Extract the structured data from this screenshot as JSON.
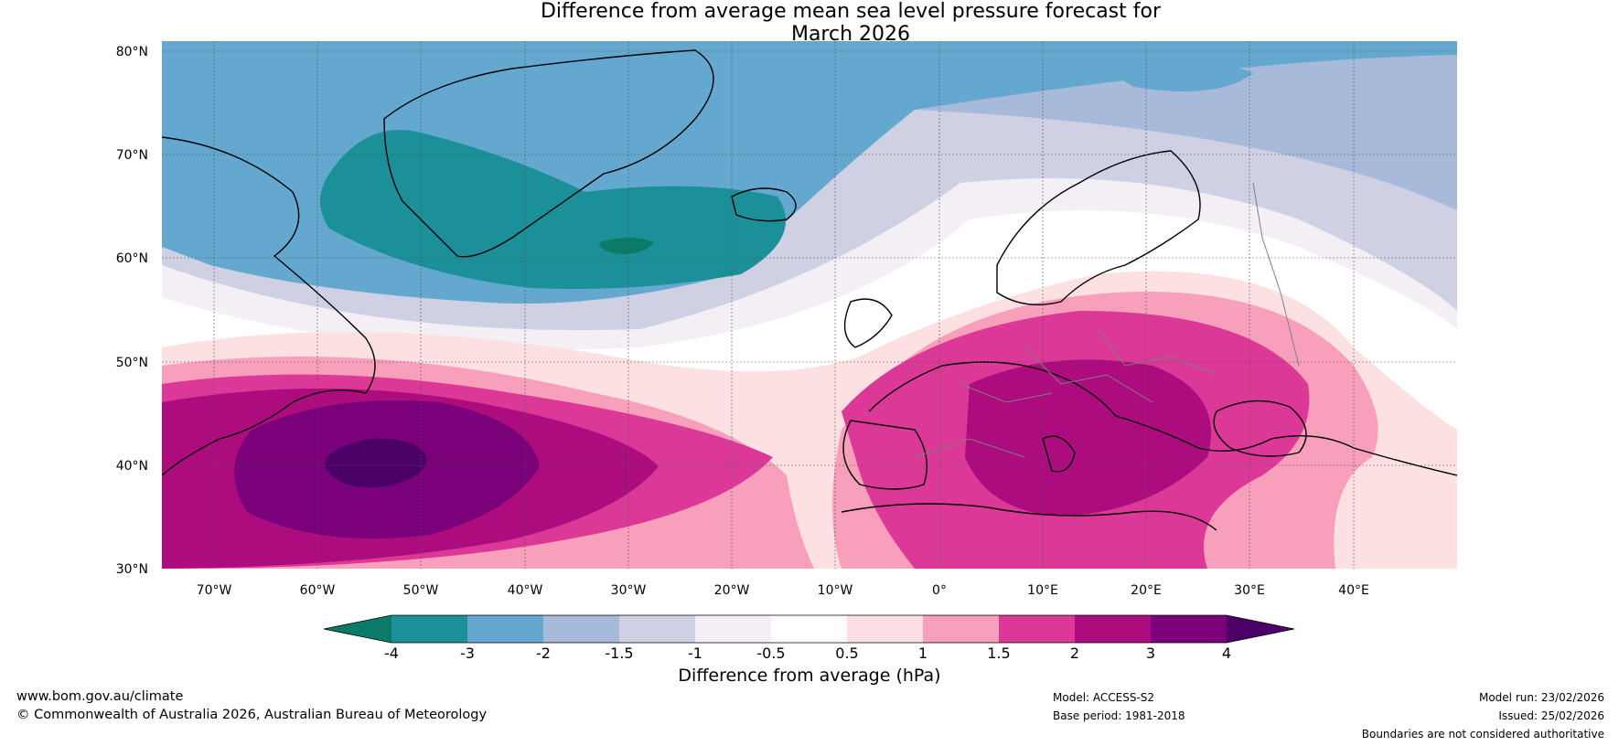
{
  "title": {
    "line1": "Difference from average mean sea level pressure forecast for",
    "line2": "March 2026"
  },
  "map": {
    "lat_labels": [
      "80°N",
      "70°N",
      "60°N",
      "50°N",
      "40°N",
      "30°N"
    ],
    "lon_labels": [
      "70°W",
      "60°W",
      "50°W",
      "40°W",
      "30°W",
      "20°W",
      "10°W",
      "0°",
      "10°E",
      "20°E",
      "30°E",
      "40°E"
    ]
  },
  "colorbar": {
    "title": "Difference from average (hPa)",
    "tick_labels": [
      "-4",
      "-3",
      "-2",
      "-1.5",
      "-1",
      "-0.5",
      "0.5",
      "1",
      "1.5",
      "2",
      "3",
      "4"
    ],
    "colors": [
      "#0c7a68",
      "#1b9099",
      "#64a8cf",
      "#a7bada",
      "#d0d0e5",
      "#f3eff5",
      "#ffffff",
      "#fde0e2",
      "#f79fbb",
      "#dc3897",
      "#ad0c7e",
      "#7a0179",
      "#4b0068"
    ]
  },
  "footer": {
    "website": "www.bom.gov.au/climate",
    "copyright": "© Commonwealth of Australia 2026, Australian Bureau of Meteorology",
    "model": "Model: ACCESS-S2",
    "base_period": "Base period: 1981-2018",
    "model_run": "Model run: 23/02/2026",
    "issued": "Issued: 25/02/2026",
    "disclaimer": "Boundaries are not considered authoritative"
  }
}
